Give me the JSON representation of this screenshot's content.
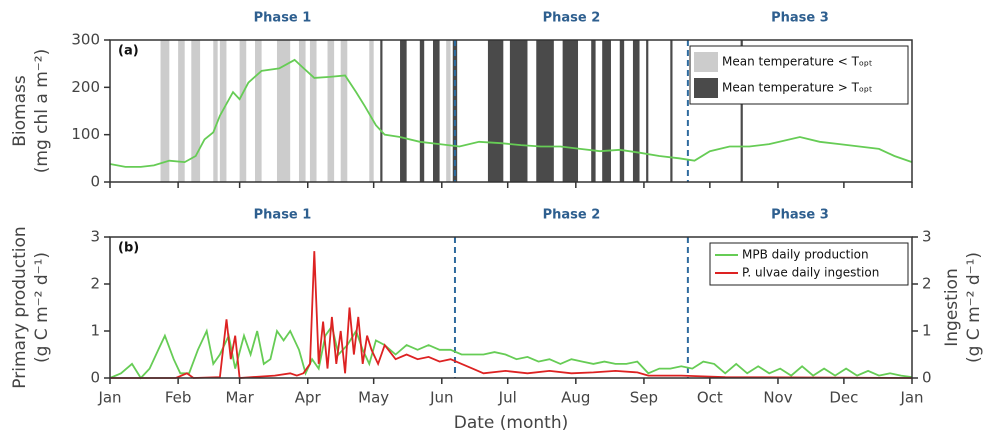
{
  "chart_data": [
    {
      "type": "line",
      "panel_label": "(a)",
      "ylabel": [
        "Biomass",
        "(mg chl a m⁻²)"
      ],
      "xlim": [
        0,
        365
      ],
      "xticks": [
        0,
        31,
        59,
        90,
        120,
        151,
        181,
        212,
        243,
        273,
        304,
        334,
        365
      ],
      "ylim": [
        0,
        300
      ],
      "yticks": [
        0,
        100,
        200,
        300
      ],
      "phase_labels": [
        "Phase 1",
        "Phase 2",
        "Phase 3"
      ],
      "phase_boundaries": [
        157,
        263
      ],
      "legend": "upper right",
      "bands": [
        {
          "name": "Mean temperature < Tₒₚₜ",
          "color": "#cccccc",
          "intervals": [
            [
              23,
              27
            ],
            [
              31,
              34
            ],
            [
              37,
              41
            ],
            [
              47,
              49
            ],
            [
              50,
              53
            ],
            [
              59,
              62
            ],
            [
              66,
              69
            ],
            [
              76,
              82
            ],
            [
              86,
              89
            ],
            [
              91,
              94
            ],
            [
              99,
              102
            ],
            [
              105,
              108
            ],
            [
              118,
              120
            ],
            [
              153,
              155
            ]
          ]
        },
        {
          "name": "Mean temperature > Tₒₚₜ",
          "color": "#4a4a4a",
          "intervals": [
            [
              123,
              124
            ],
            [
              132,
              135
            ],
            [
              141,
              143
            ],
            [
              147,
              150
            ],
            [
              156,
              158
            ],
            [
              172,
              179
            ],
            [
              182,
              190
            ],
            [
              194,
              202
            ],
            [
              206,
              213
            ],
            [
              219,
              221
            ],
            [
              224,
              228
            ],
            [
              232,
              234
            ],
            [
              238,
              241
            ],
            [
              244,
              245
            ],
            [
              255,
              256
            ],
            [
              287,
              288
            ]
          ]
        }
      ],
      "series": [
        {
          "name": null,
          "color": "#66cc55",
          "x": [
            0,
            7,
            14,
            20,
            27,
            34,
            39,
            43,
            47,
            50,
            56,
            59,
            63,
            69,
            77,
            84,
            87,
            93,
            100,
            107,
            112,
            116,
            121,
            125,
            132,
            141,
            150,
            159,
            168,
            178,
            187,
            196,
            205,
            214,
            223,
            232,
            241,
            250,
            259,
            266,
            273,
            282,
            291,
            300,
            314,
            323,
            332,
            341,
            350,
            357,
            365
          ],
          "values": [
            38,
            32,
            32,
            35,
            45,
            42,
            55,
            90,
            105,
            140,
            190,
            175,
            210,
            235,
            240,
            258,
            245,
            220,
            222,
            225,
            190,
            160,
            120,
            100,
            95,
            85,
            80,
            75,
            85,
            82,
            78,
            75,
            75,
            70,
            65,
            68,
            62,
            55,
            50,
            45,
            65,
            75,
            75,
            80,
            95,
            85,
            80,
            75,
            70,
            55,
            42
          ]
        }
      ]
    },
    {
      "type": "line",
      "panel_label": "(b)",
      "ylabel": [
        "Primary production",
        "(g C m⁻² d⁻¹)"
      ],
      "y2label": [
        "Ingestion",
        "(g C m⁻² d⁻¹)"
      ],
      "xlabel": "Date (month)",
      "xlim": [
        0,
        365
      ],
      "xticks": [
        {
          "value": 0,
          "label": "Jan"
        },
        {
          "value": 31,
          "label": "Feb"
        },
        {
          "value": 59,
          "label": "Mar"
        },
        {
          "value": 90,
          "label": "Apr"
        },
        {
          "value": 120,
          "label": "May"
        },
        {
          "value": 151,
          "label": "Jun"
        },
        {
          "value": 181,
          "label": "Jul"
        },
        {
          "value": 212,
          "label": "Aug"
        },
        {
          "value": 243,
          "label": "Sep"
        },
        {
          "value": 273,
          "label": "Oct"
        },
        {
          "value": 304,
          "label": "Nov"
        },
        {
          "value": 334,
          "label": "Dec"
        },
        {
          "value": 365,
          "label": "Jan"
        }
      ],
      "ylim": [
        0,
        3
      ],
      "yticks": [
        0,
        1,
        2,
        3
      ],
      "y2lim": [
        0,
        3
      ],
      "y2ticks": [
        0,
        1,
        2,
        3
      ],
      "phase_labels": [
        "Phase 1",
        "Phase 2",
        "Phase 3"
      ],
      "phase_boundaries": [
        157,
        263
      ],
      "legend": "upper right",
      "series": [
        {
          "name": "MPB daily production",
          "color": "#66cc55",
          "x": [
            0,
            5,
            10,
            14,
            18,
            22,
            25,
            29,
            32,
            36,
            40,
            44,
            47,
            50,
            54,
            57,
            61,
            64,
            67,
            70,
            73,
            76,
            79,
            82,
            86,
            89,
            92,
            95,
            98,
            101,
            104,
            108,
            112,
            115,
            118,
            121,
            125,
            130,
            135,
            140,
            145,
            150,
            155,
            160,
            165,
            170,
            175,
            180,
            185,
            190,
            195,
            200,
            205,
            210,
            215,
            220,
            225,
            230,
            235,
            240,
            245,
            250,
            255,
            260,
            265,
            270,
            275,
            280,
            285,
            290,
            295,
            300,
            305,
            310,
            315,
            320,
            325,
            330,
            335,
            340,
            345,
            350,
            355,
            360,
            365
          ],
          "values": [
            0,
            0.1,
            0.3,
            0,
            0.2,
            0.6,
            0.9,
            0.4,
            0.1,
            0.1,
            0.6,
            1.0,
            0.3,
            0.5,
            0.9,
            0.2,
            0.9,
            0.5,
            1.0,
            0.3,
            0.4,
            1.0,
            0.8,
            1.0,
            0.6,
            0.1,
            0.4,
            0.2,
            0.9,
            1.1,
            0.5,
            0.7,
            1.0,
            0.6,
            0.3,
            0.8,
            0.7,
            0.5,
            0.7,
            0.6,
            0.7,
            0.6,
            0.6,
            0.5,
            0.5,
            0.5,
            0.55,
            0.5,
            0.4,
            0.45,
            0.35,
            0.4,
            0.3,
            0.4,
            0.35,
            0.3,
            0.35,
            0.3,
            0.3,
            0.35,
            0.1,
            0.2,
            0.2,
            0.25,
            0.2,
            0.35,
            0.3,
            0.1,
            0.3,
            0.1,
            0.25,
            0.1,
            0.2,
            0.05,
            0.25,
            0.05,
            0.2,
            0.05,
            0.2,
            0.05,
            0.15,
            0.05,
            0.1,
            0.05,
            0.02
          ]
        },
        {
          "name": "P. ulvae daily ingestion",
          "color": "#dd2222",
          "axis": "y2",
          "x": [
            0,
            30,
            35,
            38,
            50,
            53,
            55,
            57,
            59,
            75,
            82,
            85,
            88,
            91,
            93,
            95,
            97,
            99,
            101,
            103,
            105,
            107,
            109,
            111,
            113,
            115,
            117,
            119,
            122,
            125,
            130,
            135,
            140,
            145,
            150,
            155,
            160,
            165,
            170,
            180,
            190,
            200,
            210,
            220,
            230,
            240,
            245,
            260,
            280,
            320,
            365
          ],
          "values": [
            0,
            0,
            0.1,
            0,
            0.02,
            1.25,
            0.4,
            0.9,
            0,
            0.05,
            0.1,
            0.05,
            0.1,
            0.3,
            2.7,
            0.3,
            1.2,
            0.2,
            1.3,
            0.3,
            1.0,
            0.1,
            1.5,
            0.5,
            1.3,
            0.3,
            0.9,
            0.6,
            0.3,
            0.7,
            0.4,
            0.5,
            0.4,
            0.45,
            0.35,
            0.4,
            0.3,
            0.2,
            0.1,
            0.15,
            0.1,
            0.15,
            0.1,
            0.12,
            0.15,
            0.12,
            0.05,
            0.05,
            0.02,
            0.01,
            0
          ]
        }
      ]
    }
  ]
}
